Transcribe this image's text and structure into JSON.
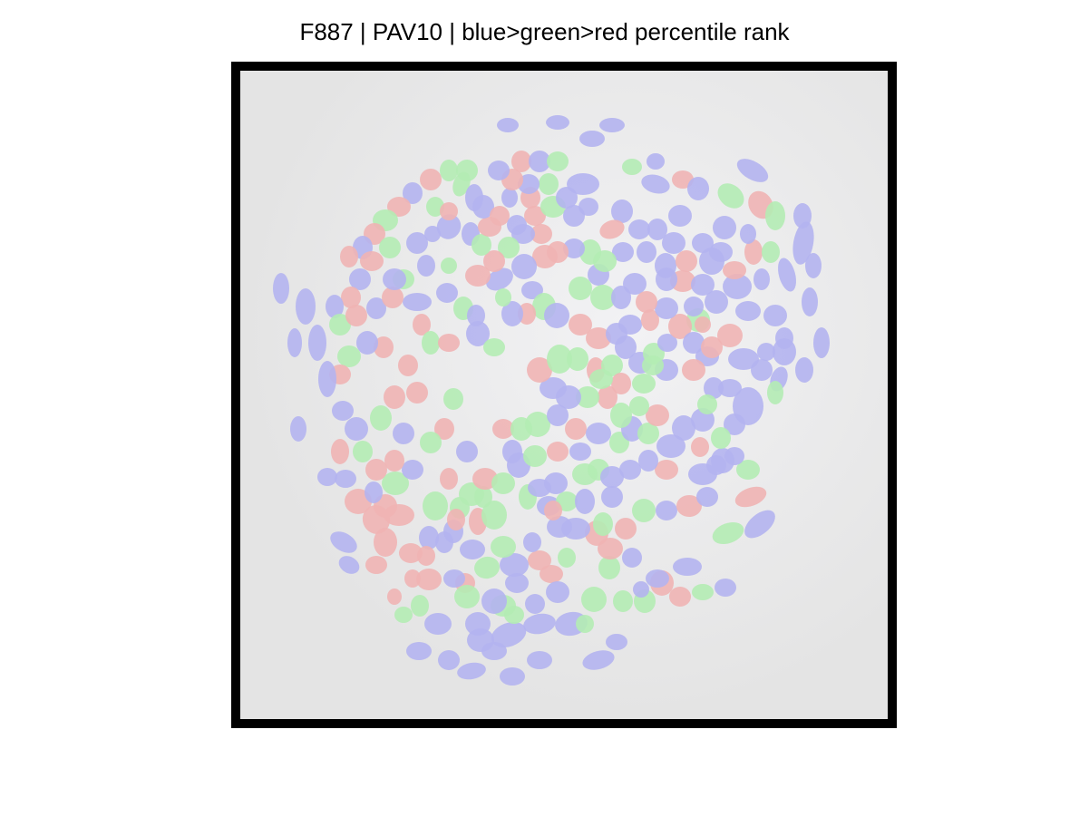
{
  "figure": {
    "title": "F887 | PAV10 | blue>green>red percentile rank",
    "colors": {
      "background": "#e6e6e6",
      "frame": "#000000",
      "blue": "#b4b4f0",
      "green": "#b4ecb4",
      "red": "#f0b4b4"
    }
  }
}
